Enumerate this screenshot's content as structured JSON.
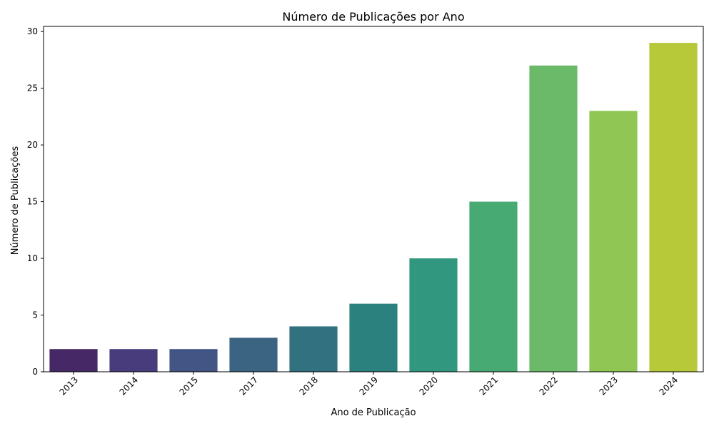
{
  "chart_data": {
    "type": "bar",
    "title": "Número de Publicações por Ano",
    "xlabel": "Ano de Publicação",
    "ylabel": "Número de Publicações",
    "categories": [
      "2013",
      "2014",
      "2015",
      "2017",
      "2018",
      "2019",
      "2020",
      "2021",
      "2022",
      "2023",
      "2024"
    ],
    "values": [
      2,
      2,
      2,
      3,
      4,
      6,
      10,
      15,
      27,
      23,
      29
    ],
    "colors": [
      "#472867",
      "#483c7c",
      "#425584",
      "#3b6483",
      "#32717f",
      "#2b817d",
      "#32977f",
      "#47aa72",
      "#6aba6a",
      "#8fc654",
      "#b7c839"
    ],
    "ylim": [
      0,
      30.45
    ],
    "yticks": [
      0,
      5,
      10,
      15,
      20,
      25,
      30
    ],
    "grid": false,
    "legend": "none",
    "xtick_rotation": 45
  }
}
